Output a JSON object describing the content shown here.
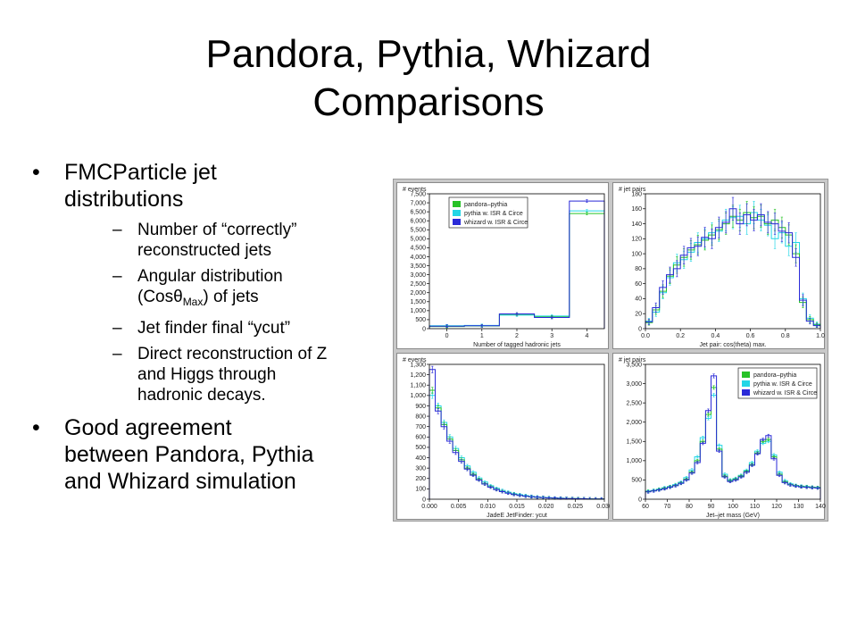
{
  "title": {
    "line1": "Pandora, Pythia, Whizard",
    "line2": "Comparisons"
  },
  "bullets": {
    "b1": {
      "line1": "FMCParticle jet",
      "line2": "distributions"
    },
    "sub": [
      {
        "line1": "Number of “correctly”",
        "line2": "reconstructed jets"
      },
      {
        "line1": "Angular distribution",
        "line2_pre": "(Cosθ",
        "line2_sub": "Max",
        "line2_post": ") of jets"
      },
      {
        "line1": "Jet finder final “ycut”"
      },
      {
        "line1": "Direct reconstruction of Z",
        "line2": "and Higgs through",
        "line3": "hadronic decays."
      }
    ],
    "b2": {
      "line1": "Good agreement",
      "line2": "between Pandora, Pythia",
      "line3": "and Whizard simulation"
    }
  },
  "colors": {
    "pandora": "#27c227",
    "pythia": "#22d6e6",
    "whizard": "#2a2ad8"
  },
  "chart_data": [
    {
      "type": "histogram",
      "xlabel": "Number of tagged hadronic jets",
      "ylabel": "# events",
      "xlim": [
        -0.5,
        4.5
      ],
      "ylim": [
        0,
        7500
      ],
      "xticks": [
        0,
        1,
        2,
        3,
        4
      ],
      "yticks": [
        0,
        500,
        1000,
        1500,
        2000,
        2500,
        3000,
        3500,
        4000,
        4500,
        5000,
        5500,
        6000,
        6500,
        7000,
        7500
      ],
      "ytick_labels": [
        "0",
        "500",
        "1,000",
        "1,500",
        "2,000",
        "2,500",
        "3,000",
        "3,500",
        "4,000",
        "4,500",
        "5,000",
        "5,500",
        "6,000",
        "6,500",
        "7,000",
        "7,500"
      ],
      "legend": [
        "pandora–pythia",
        "pythia w. ISR & Circe",
        "whizard w. ISR & Circe"
      ],
      "legend_position": "top-left",
      "bin_edges": [
        -0.5,
        0.5,
        1.5,
        2.5,
        3.5,
        4.5
      ],
      "series": [
        {
          "name": "pandora–pythia",
          "values": [
            120,
            150,
            800,
            650,
            6400
          ]
        },
        {
          "name": "pythia w. ISR & Circe",
          "values": [
            160,
            180,
            750,
            700,
            6550
          ]
        },
        {
          "name": "whizard w. ISR & Circe",
          "values": [
            140,
            160,
            820,
            620,
            7100
          ]
        }
      ]
    },
    {
      "type": "histogram",
      "xlabel": "Jet pair: cos(theta) max.",
      "ylabel": "# jet pairs",
      "xlim": [
        0,
        1
      ],
      "ylim": [
        0,
        180
      ],
      "xticks": [
        0,
        0.2,
        0.4,
        0.6,
        0.8,
        1.0
      ],
      "xtick_labels": [
        "0.0",
        "0.2",
        "0.4",
        "0.6",
        "0.8",
        "1.0"
      ],
      "yticks": [
        0,
        20,
        40,
        60,
        80,
        100,
        120,
        140,
        160,
        180
      ],
      "ytick_labels": [
        "0",
        "20",
        "40",
        "60",
        "80",
        "100",
        "120",
        "140",
        "160",
        "180"
      ],
      "bin_edges": [
        0,
        0.04,
        0.08,
        0.12,
        0.16,
        0.2,
        0.24,
        0.28,
        0.32,
        0.36,
        0.4,
        0.44,
        0.48,
        0.52,
        0.56,
        0.6,
        0.64,
        0.68,
        0.72,
        0.76,
        0.8,
        0.84,
        0.88,
        0.92,
        0.96,
        1.0
      ],
      "series": [
        {
          "name": "pandora–pythia",
          "values": [
            8,
            25,
            50,
            70,
            85,
            95,
            105,
            112,
            118,
            125,
            132,
            140,
            150,
            145,
            155,
            148,
            150,
            140,
            145,
            135,
            125,
            100,
            35,
            12,
            5
          ]
        },
        {
          "name": "pythia w. ISR & Circe",
          "values": [
            10,
            22,
            48,
            68,
            88,
            92,
            102,
            115,
            120,
            128,
            130,
            145,
            148,
            150,
            140,
            155,
            145,
            138,
            120,
            128,
            110,
            115,
            40,
            14,
            6
          ]
        },
        {
          "name": "whizard w. ISR & Circe",
          "values": [
            9,
            28,
            55,
            72,
            80,
            98,
            108,
            110,
            122,
            120,
            135,
            142,
            160,
            140,
            152,
            145,
            152,
            142,
            140,
            130,
            128,
            95,
            38,
            10,
            4
          ]
        }
      ]
    },
    {
      "type": "histogram",
      "xlabel": "JadeE JetFinder: ycut",
      "ylabel": "# events",
      "xlim": [
        0,
        0.03
      ],
      "ylim": [
        0,
        1300
      ],
      "xticks": [
        0,
        0.005,
        0.01,
        0.015,
        0.02,
        0.025,
        0.03
      ],
      "xtick_labels": [
        "0.000",
        "0.005",
        "0.010",
        "0.015",
        "0.020",
        "0.025",
        "0.030"
      ],
      "yticks": [
        0,
        100,
        200,
        300,
        400,
        500,
        600,
        700,
        800,
        900,
        1000,
        1100,
        1200,
        1300
      ],
      "ytick_labels": [
        "0",
        "100",
        "200",
        "300",
        "400",
        "500",
        "600",
        "700",
        "800",
        "900",
        "1,000",
        "1,100",
        "1,200",
        "1,300"
      ],
      "bin_edges": [
        0,
        0.001,
        0.002,
        0.003,
        0.004,
        0.005,
        0.006,
        0.007,
        0.008,
        0.009,
        0.01,
        0.011,
        0.012,
        0.013,
        0.014,
        0.015,
        0.016,
        0.017,
        0.018,
        0.019,
        0.02,
        0.021,
        0.022,
        0.023,
        0.024,
        0.025,
        0.026,
        0.027,
        0.028,
        0.029,
        0.03
      ],
      "series": [
        {
          "name": "pandora–pythia",
          "values": [
            1050,
            880,
            720,
            580,
            470,
            380,
            300,
            240,
            190,
            150,
            120,
            95,
            75,
            60,
            48,
            38,
            30,
            24,
            20,
            16,
            13,
            10,
            8,
            7,
            6,
            5,
            4,
            3,
            3,
            2
          ]
        },
        {
          "name": "pythia w. ISR & Circe",
          "values": [
            1000,
            900,
            740,
            600,
            490,
            400,
            320,
            260,
            205,
            165,
            130,
            105,
            85,
            68,
            54,
            44,
            35,
            28,
            22,
            18,
            15,
            12,
            10,
            8,
            7,
            6,
            5,
            4,
            3,
            3
          ]
        },
        {
          "name": "whizard w. ISR & Circe",
          "values": [
            1250,
            850,
            700,
            560,
            450,
            365,
            290,
            232,
            185,
            146,
            116,
            92,
            73,
            58,
            46,
            37,
            29,
            23,
            19,
            15,
            12,
            10,
            8,
            6,
            5,
            4,
            4,
            3,
            2,
            2
          ]
        }
      ]
    },
    {
      "type": "histogram",
      "xlabel": "Jet–jet mass (GeV)",
      "ylabel": "# jet pairs",
      "xlim": [
        60,
        140
      ],
      "ylim": [
        0,
        3500
      ],
      "xticks": [
        60,
        70,
        80,
        90,
        100,
        110,
        120,
        130,
        140
      ],
      "yticks": [
        0,
        500,
        1000,
        1500,
        2000,
        2500,
        3000,
        3500
      ],
      "ytick_labels": [
        "0",
        "500",
        "1,000",
        "1,500",
        "2,000",
        "2,500",
        "3,000",
        "3,500"
      ],
      "legend": [
        "pandora–pythia",
        "pythia w. ISR & Circe",
        "whizard w. ISR & Circe"
      ],
      "legend_position": "top-right",
      "bin_edges": [
        60,
        62.5,
        65,
        67.5,
        70,
        72.5,
        75,
        77.5,
        80,
        82.5,
        85,
        87.5,
        90,
        92.5,
        95,
        97.5,
        100,
        102.5,
        105,
        107.5,
        110,
        112.5,
        115,
        117.5,
        120,
        122.5,
        125,
        127.5,
        130,
        132.5,
        135,
        137.5,
        140
      ],
      "series": [
        {
          "name": "pandora–pythia",
          "values": [
            200,
            220,
            250,
            280,
            320,
            360,
            420,
            520,
            700,
            1000,
            1500,
            2200,
            2900,
            1300,
            600,
            480,
            520,
            600,
            720,
            900,
            1200,
            1500,
            1550,
            1100,
            650,
            450,
            380,
            350,
            330,
            320,
            310,
            300
          ]
        },
        {
          "name": "pythia w. ISR & Circe",
          "values": [
            210,
            230,
            260,
            300,
            330,
            380,
            440,
            560,
            760,
            1100,
            1600,
            2100,
            2700,
            1400,
            650,
            500,
            540,
            620,
            750,
            950,
            1250,
            1450,
            1500,
            1150,
            700,
            480,
            400,
            360,
            340,
            330,
            315,
            305
          ]
        },
        {
          "name": "whizard w. ISR & Circe",
          "values": [
            190,
            215,
            240,
            270,
            310,
            350,
            410,
            500,
            680,
            950,
            1450,
            2300,
            3200,
            1250,
            580,
            460,
            500,
            580,
            700,
            880,
            1180,
            1550,
            1650,
            1050,
            620,
            430,
            370,
            340,
            320,
            310,
            300,
            290
          ]
        }
      ]
    }
  ]
}
